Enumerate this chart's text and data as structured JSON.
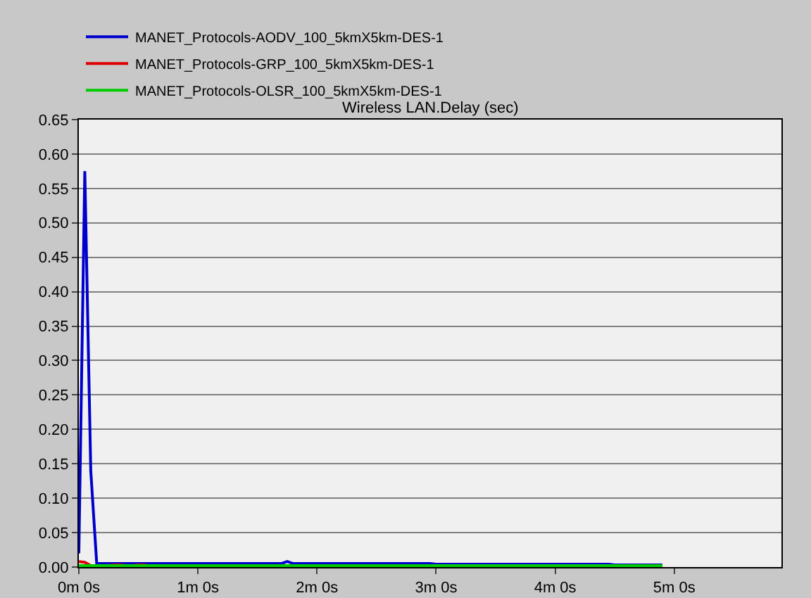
{
  "chart_data": {
    "type": "line",
    "title": "Wireless LAN.Delay (sec)",
    "legend": "top left",
    "grid": "y",
    "marker": "none",
    "line_style": "solid",
    "categories": [
      "0m 0s",
      null,
      null,
      null,
      null,
      null,
      null,
      null,
      null,
      null,
      null,
      null,
      null,
      null,
      null,
      null,
      null,
      null,
      null,
      null,
      "1m 0s",
      null,
      null,
      null,
      null,
      null,
      null,
      null,
      null,
      null,
      null,
      null,
      null,
      null,
      null,
      null,
      null,
      null,
      null,
      null,
      "2m 0s",
      null,
      null,
      null,
      null,
      null,
      null,
      null,
      null,
      null,
      null,
      null,
      null,
      null,
      null,
      null,
      null,
      null,
      null,
      null,
      "3m 0s",
      null,
      null,
      null,
      null,
      null,
      null,
      null,
      null,
      null,
      null,
      null,
      null,
      null,
      null,
      null,
      null,
      null,
      null,
      null,
      "4m 0s",
      null,
      null,
      null,
      null,
      null,
      null,
      null,
      null,
      null,
      null,
      null,
      null,
      null,
      null,
      null,
      null,
      null,
      null,
      null,
      "5m 0s",
      null,
      null,
      null,
      null,
      null,
      null,
      null,
      null,
      null,
      null,
      null,
      null,
      null,
      null,
      null,
      null,
      null,
      null
    ],
    "ylim": [
      0,
      0.65
    ],
    "yticks": [
      {
        "value": 0,
        "label": "0.00"
      },
      {
        "value": 0.05,
        "label": "0.05"
      },
      {
        "value": 0.1,
        "label": "0.10"
      },
      {
        "value": 0.15,
        "label": "0.15"
      },
      {
        "value": 0.2,
        "label": "0.20"
      },
      {
        "value": 0.25,
        "label": "0.25"
      },
      {
        "value": 0.3,
        "label": "0.30"
      },
      {
        "value": 0.35,
        "label": "0.35"
      },
      {
        "value": 0.4,
        "label": "0.40"
      },
      {
        "value": 0.45,
        "label": "0.45"
      },
      {
        "value": 0.5,
        "label": "0.50"
      },
      {
        "value": 0.55,
        "label": "0.55"
      },
      {
        "value": 0.6,
        "label": "0.60"
      },
      {
        "value": 0.65,
        "label": "0.65"
      }
    ],
    "series": [
      {
        "name": "MANET_Protocols-AODV_100_5kmX5km-DES-1",
        "color": "#0000cc",
        "values": [
          0.02,
          0.575,
          0.14,
          0.005,
          0.005,
          0.005,
          0.005,
          0.005,
          0.005,
          0.005,
          0.005,
          0.005,
          0.005,
          0.005,
          0.005,
          0.005,
          0.005,
          0.005,
          0.005,
          0.005,
          0.005,
          0.005,
          0.005,
          0.005,
          0.005,
          0.005,
          0.005,
          0.005,
          0.005,
          0.005,
          0.005,
          0.005,
          0.005,
          0.005,
          0.005,
          0.008,
          0.005,
          0.005,
          0.005,
          0.005,
          0.005,
          0.005,
          0.005,
          0.005,
          0.005,
          0.005,
          0.005,
          0.005,
          0.005,
          0.005,
          0.005,
          0.005,
          0.005,
          0.005,
          0.005,
          0.005,
          0.005,
          0.005,
          0.005,
          0.005,
          0.004,
          0.004,
          0.004,
          0.004,
          0.004,
          0.004,
          0.004,
          0.004,
          0.004,
          0.004,
          0.004,
          0.004,
          0.004,
          0.004,
          0.004,
          0.004,
          0.004,
          0.004,
          0.004,
          0.004,
          0.004,
          0.004,
          0.004,
          0.004,
          0.004,
          0.004,
          0.004,
          0.004,
          0.004,
          0.004,
          0.003,
          0.003,
          0.003,
          0.003,
          0.003,
          0.003,
          0.003,
          0.003,
          0.003,
          null,
          null,
          null,
          null,
          null,
          null,
          null,
          null,
          null,
          null,
          null,
          null,
          null,
          null,
          null,
          null,
          null,
          null,
          null,
          null
        ]
      },
      {
        "name": "MANET_Protocols-GRP_100_5kmX5km-DES-1",
        "color": "#dd0000",
        "values": [
          0.008,
          0.007,
          0.002,
          0.002,
          0.002,
          0.002,
          0.003,
          0.003,
          0.002,
          0.002,
          0.003,
          0.003,
          0.001,
          null,
          null,
          null,
          null,
          null,
          null,
          null,
          null,
          null,
          null,
          null,
          null,
          null,
          null,
          null,
          null,
          null,
          null,
          null,
          null,
          null,
          null,
          null,
          null,
          null,
          null,
          null,
          null,
          null,
          null,
          null,
          null,
          null,
          null,
          null,
          null,
          null,
          null,
          null,
          null,
          null,
          null,
          null,
          null,
          null,
          null,
          null,
          null,
          null,
          null,
          null,
          null,
          null,
          null,
          null,
          null,
          null,
          null,
          null,
          null,
          null,
          null,
          null,
          null,
          null,
          null,
          null,
          null,
          null,
          null,
          null,
          null,
          null,
          null,
          null,
          null,
          null,
          null,
          null,
          null,
          null,
          null,
          null,
          null,
          null,
          null,
          null,
          null,
          null,
          null,
          null,
          null,
          null,
          null,
          null,
          null,
          null,
          null,
          null,
          null,
          null,
          null,
          null,
          null,
          null,
          null
        ]
      },
      {
        "name": "MANET_Protocols-OLSR_100_5kmX5km-DES-1",
        "color": "#00cc00",
        "values": [
          0.002,
          0.002,
          0.002,
          0.002,
          0.002,
          0.002,
          0.002,
          0.002,
          0.002,
          0.002,
          0.002,
          0.002,
          0.002,
          0.002,
          0.002,
          0.002,
          0.002,
          0.002,
          0.002,
          0.002,
          0.002,
          0.002,
          0.002,
          0.002,
          0.002,
          0.002,
          0.002,
          0.002,
          0.002,
          0.002,
          0.002,
          0.002,
          0.002,
          0.002,
          0.002,
          0.002,
          0.002,
          0.002,
          0.002,
          0.002,
          0.002,
          0.002,
          0.002,
          0.002,
          0.002,
          0.002,
          0.002,
          0.002,
          0.002,
          0.002,
          0.002,
          0.002,
          0.002,
          0.002,
          0.002,
          0.002,
          0.002,
          0.002,
          0.002,
          0.002,
          0.002,
          0.002,
          0.002,
          0.002,
          0.002,
          0.002,
          0.002,
          0.002,
          0.002,
          0.002,
          0.002,
          0.002,
          0.002,
          0.002,
          0.002,
          0.002,
          0.002,
          0.002,
          0.002,
          0.002,
          0.002,
          0.002,
          0.002,
          0.002,
          0.002,
          0.002,
          0.002,
          0.002,
          0.002,
          0.002,
          0.002,
          0.002,
          0.002,
          0.002,
          0.002,
          0.002,
          0.002,
          0.002,
          0.002,
          null,
          null,
          null,
          null,
          null,
          null,
          null,
          null,
          null,
          null,
          null,
          null,
          null,
          null,
          null,
          null,
          null,
          null,
          null,
          null
        ]
      }
    ]
  }
}
